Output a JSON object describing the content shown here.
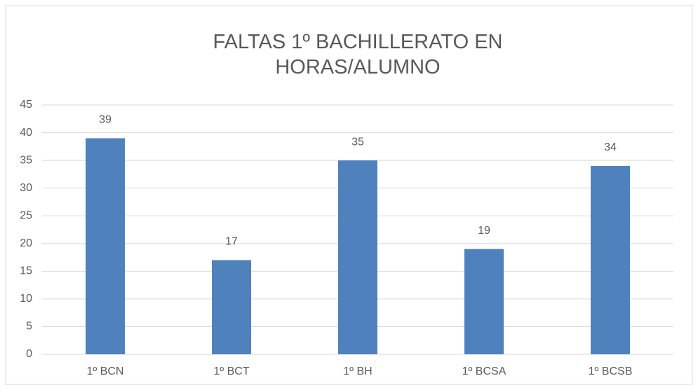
{
  "chart_data": {
    "type": "bar",
    "title": "FALTAS 1º BACHILLERATO EN HORAS/ALUMNO",
    "categories": [
      "1º BCN",
      "1º BCT",
      "1º BH",
      "1º BCSA",
      "1º BCSB"
    ],
    "values": [
      39,
      17,
      35,
      19,
      34
    ],
    "color": "#4f81bd",
    "ylim": [
      0,
      45
    ],
    "yticks": [
      0,
      5,
      10,
      15,
      20,
      25,
      30,
      35,
      40,
      45
    ],
    "grid": true
  }
}
